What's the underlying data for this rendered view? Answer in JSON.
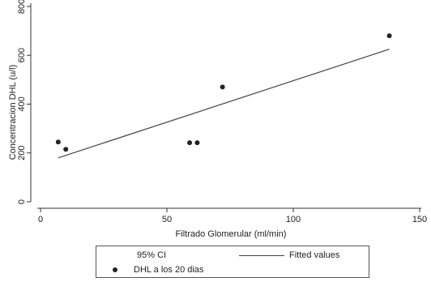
{
  "chart_data": {
    "type": "scatter",
    "title": "",
    "xlabel": "Filtrado Glomerular (ml/min)",
    "ylabel": "Concentracion DHL (u/l)",
    "xlim": [
      0,
      150
    ],
    "ylim": [
      0,
      800
    ],
    "x_ticks": [
      0,
      50,
      100,
      150
    ],
    "y_ticks": [
      0,
      200,
      400,
      600,
      800
    ],
    "grid": false,
    "legend_position": "bottom",
    "series": [
      {
        "name": "DHL a los 20 dias",
        "kind": "points",
        "color": "#222222",
        "points": [
          {
            "x": 7,
            "y": 245
          },
          {
            "x": 10,
            "y": 215
          },
          {
            "x": 59,
            "y": 242
          },
          {
            "x": 62,
            "y": 242
          },
          {
            "x": 72,
            "y": 470
          },
          {
            "x": 138,
            "y": 680
          }
        ]
      },
      {
        "name": "Fitted values",
        "kind": "line",
        "color": "#444444",
        "points": [
          {
            "x": 7,
            "y": 180
          },
          {
            "x": 138,
            "y": 625
          }
        ]
      }
    ],
    "legend": [
      {
        "label": "95% CI",
        "marker": "none"
      },
      {
        "label": "Fitted values",
        "marker": "line"
      },
      {
        "label": "DHL a los 20 dias",
        "marker": "dot"
      }
    ]
  }
}
